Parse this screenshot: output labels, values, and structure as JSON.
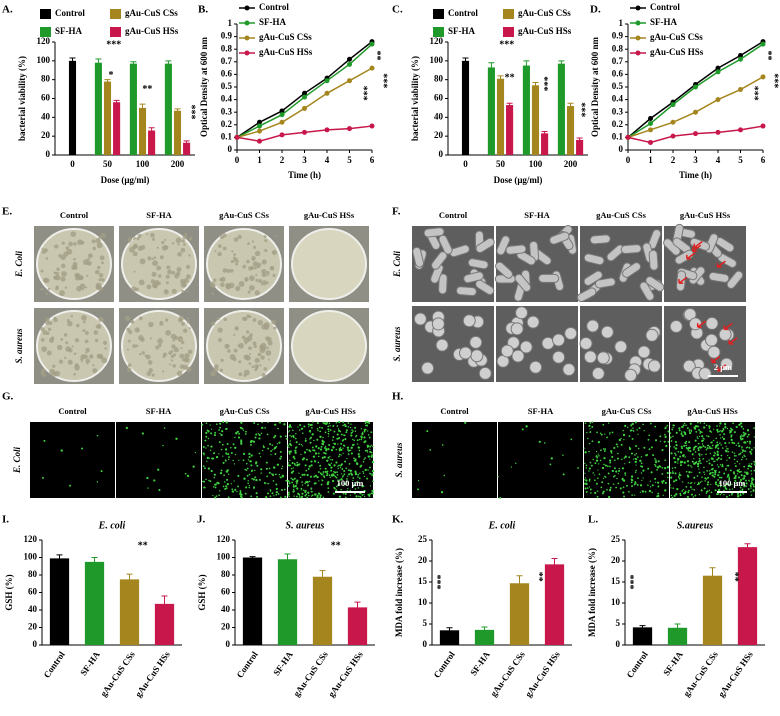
{
  "chart_data": [
    {
      "type": "bar",
      "panel_label": "A.",
      "ylabel": "bacterial viability (%)",
      "xlabel": "Dose (μg/ml)",
      "categories": [
        "0",
        "50",
        "100",
        "200"
      ],
      "ylim": [
        0,
        120
      ],
      "yticks": [
        0,
        20,
        40,
        60,
        80,
        100,
        120
      ],
      "series": [
        {
          "name": "Control",
          "color": "#000000",
          "values": [
            100,
            null,
            null,
            null
          ],
          "errors": [
            3,
            null,
            null,
            null
          ]
        },
        {
          "name": "SF-HA",
          "color": "#1f9a2a",
          "values": [
            null,
            98,
            97,
            97
          ],
          "errors": [
            null,
            4,
            2,
            3
          ]
        },
        {
          "name": "gAu-CuS CSs",
          "color": "#a5861e",
          "values": [
            null,
            78,
            50,
            47
          ],
          "errors": [
            null,
            2,
            4,
            2
          ]
        },
        {
          "name": "gAu-CuS HSs",
          "color": "#c8174a",
          "values": [
            null,
            56,
            26,
            13
          ],
          "errors": [
            null,
            2,
            3,
            2
          ]
        }
      ],
      "annotations": [
        "***",
        "*",
        "**",
        "***"
      ]
    },
    {
      "type": "line",
      "panel_label": "B.",
      "ylabel": "Optical Density at 600 nm",
      "xlabel": "Time (h)",
      "x": [
        0,
        1,
        2,
        3,
        4,
        5,
        6
      ],
      "xlim": [
        0,
        6
      ],
      "xticks": [
        0,
        1,
        2,
        3,
        4,
        5,
        6
      ],
      "ylim": [
        0,
        1
      ],
      "yticks": [
        0,
        0.1,
        0.2,
        0.3,
        0.4,
        0.5,
        0.6,
        0.7,
        0.8,
        0.9,
        1
      ],
      "series": [
        {
          "name": "Control",
          "color": "#000000",
          "values": [
            0.1,
            0.22,
            0.31,
            0.45,
            0.57,
            0.72,
            0.86
          ]
        },
        {
          "name": "SF-HA",
          "color": "#1f9a2a",
          "values": [
            0.1,
            0.19,
            0.28,
            0.42,
            0.55,
            0.68,
            0.84
          ]
        },
        {
          "name": "gAu-CuS CSs",
          "color": "#a5861e",
          "values": [
            0.1,
            0.15,
            0.22,
            0.33,
            0.45,
            0.55,
            0.65
          ]
        },
        {
          "name": "gAu-CuS HSs",
          "color": "#c8174a",
          "values": [
            0.1,
            0.07,
            0.12,
            0.14,
            0.16,
            0.17,
            0.19
          ]
        }
      ],
      "annotations": [
        "**",
        "***",
        "***"
      ]
    },
    {
      "type": "bar",
      "panel_label": "C.",
      "ylabel": "bacterial viability (%)",
      "xlabel": "Dose (μg/ml)",
      "categories": [
        "0",
        "50",
        "100",
        "200"
      ],
      "ylim": [
        0,
        120
      ],
      "yticks": [
        0,
        20,
        40,
        60,
        80,
        100,
        120
      ],
      "series": [
        {
          "name": "Control",
          "color": "#000000",
          "values": [
            100,
            null,
            null,
            null
          ],
          "errors": [
            3,
            null,
            null,
            null
          ]
        },
        {
          "name": "SF-HA",
          "color": "#1f9a2a",
          "values": [
            null,
            93,
            95,
            97
          ],
          "errors": [
            null,
            5,
            5,
            3
          ]
        },
        {
          "name": "gAu-CuS CSs",
          "color": "#a5861e",
          "values": [
            null,
            81,
            74,
            52
          ],
          "errors": [
            null,
            3,
            3,
            3
          ]
        },
        {
          "name": "gAu-CuS HSs",
          "color": "#c8174a",
          "values": [
            null,
            53,
            23,
            16
          ],
          "errors": [
            null,
            2,
            2,
            2
          ]
        }
      ],
      "annotations": [
        "***",
        "**",
        "***",
        "***"
      ]
    },
    {
      "type": "line",
      "panel_label": "D.",
      "ylabel": "Optical Density at 600 nm",
      "xlabel": "Time (h)",
      "x": [
        0,
        1,
        2,
        3,
        4,
        5,
        6
      ],
      "xlim": [
        0,
        6
      ],
      "xticks": [
        0,
        1,
        2,
        3,
        4,
        5,
        6
      ],
      "ylim": [
        0,
        1
      ],
      "yticks": [
        0,
        0.1,
        0.2,
        0.3,
        0.4,
        0.5,
        0.6,
        0.7,
        0.8,
        0.9,
        1
      ],
      "series": [
        {
          "name": "Control",
          "color": "#000000",
          "values": [
            0.1,
            0.25,
            0.38,
            0.52,
            0.65,
            0.75,
            0.86
          ]
        },
        {
          "name": "SF-HA",
          "color": "#1f9a2a",
          "values": [
            0.1,
            0.21,
            0.36,
            0.5,
            0.62,
            0.72,
            0.84
          ]
        },
        {
          "name": "gAu-CuS CSs",
          "color": "#a5861e",
          "values": [
            0.1,
            0.16,
            0.22,
            0.3,
            0.4,
            0.48,
            0.58
          ]
        },
        {
          "name": "gAu-CuS HSs",
          "color": "#c8174a",
          "values": [
            0.1,
            0.06,
            0.11,
            0.13,
            0.14,
            0.16,
            0.19
          ]
        }
      ],
      "annotations": [
        "**",
        "***",
        "***"
      ]
    },
    {
      "type": "bar",
      "panel_label": "I.",
      "title": "E. coli",
      "ylabel": "GSH (%)",
      "categories": [
        "Control",
        "SF-HA",
        "gAu-CuS CSs",
        "gAu-CuS HSs"
      ],
      "values": [
        99,
        95,
        75,
        47
      ],
      "errors": [
        4,
        5,
        6,
        9
      ],
      "colors": [
        "#000000",
        "#1f9a2a",
        "#a5861e",
        "#c8174a"
      ],
      "ylim": [
        0,
        120
      ],
      "yticks": [
        0,
        20,
        40,
        60,
        80,
        100,
        120
      ],
      "annotations": [
        "**"
      ]
    },
    {
      "type": "bar",
      "panel_label": "J.",
      "title": "S. aureus",
      "ylabel": "GSH (%)",
      "categories": [
        "Control",
        "SF-HA",
        "gAu-CuS CSs",
        "gAu-CuS HSs"
      ],
      "values": [
        100,
        98,
        78,
        43
      ],
      "errors": [
        1,
        6,
        7,
        6
      ],
      "colors": [
        "#000000",
        "#1f9a2a",
        "#a5861e",
        "#c8174a"
      ],
      "ylim": [
        0,
        120
      ],
      "yticks": [
        0,
        20,
        40,
        60,
        80,
        100,
        120
      ],
      "annotations": [
        "**"
      ]
    },
    {
      "type": "bar",
      "panel_label": "K.",
      "title": "E. coli",
      "ylabel": "MDA fold increase (%)",
      "categories": [
        "Control",
        "SF-HA",
        "gAu-CuS CSs",
        "gAu-CuS HSs"
      ],
      "values": [
        3.5,
        3.6,
        14.7,
        19.2
      ],
      "errors": [
        0.6,
        0.7,
        1.8,
        1.4
      ],
      "colors": [
        "#000000",
        "#1f9a2a",
        "#a5861e",
        "#c8174a"
      ],
      "ylim": [
        0,
        25
      ],
      "yticks": [
        0,
        5,
        10,
        15,
        20,
        25
      ],
      "annotations": [
        "***",
        "**"
      ]
    },
    {
      "type": "bar",
      "panel_label": "L.",
      "title": "S.aureus",
      "ylabel": "MDA fold increase (%)",
      "categories": [
        "Control",
        "SF-HA",
        "gAu-CuS CSs",
        "gAu-CuS HSs"
      ],
      "values": [
        4.2,
        4.1,
        16.5,
        23.3
      ],
      "errors": [
        0.4,
        0.9,
        1.9,
        0.8
      ],
      "colors": [
        "#000000",
        "#1f9a2a",
        "#a5861e",
        "#c8174a"
      ],
      "ylim": [
        0,
        25
      ],
      "yticks": [
        0,
        5,
        10,
        15,
        20,
        25
      ],
      "annotations": [
        "***",
        "**"
      ]
    }
  ],
  "image_panels": [
    {
      "panel_label": "E.",
      "columns": [
        "Control",
        "SF-HA",
        "gAu-CuS CSs",
        "gAu-CuS HSs"
      ],
      "rows": [
        "E. Coli",
        "S. aureus"
      ]
    },
    {
      "panel_label": "F.",
      "columns": [
        "Control",
        "SF-HA",
        "gAu-CuS CSs",
        "gAu-CuS HSs"
      ],
      "rows": [
        "E. Coli",
        "S. aureus"
      ],
      "scale_bar": "2 μm"
    },
    {
      "panel_label": "G.",
      "columns": [
        "Control",
        "SF-HA",
        "gAu-CuS CSs",
        "gAu-CuS HSs"
      ],
      "rows": [
        "E. Coli"
      ],
      "scale_bar": "100 μm"
    },
    {
      "panel_label": "H.",
      "columns": [
        "Control",
        "SF-HA",
        "gAu-CuS CSs",
        "gAu-CuS HSs"
      ],
      "rows": [
        "S. aureus"
      ],
      "scale_bar": "100 μm"
    }
  ]
}
